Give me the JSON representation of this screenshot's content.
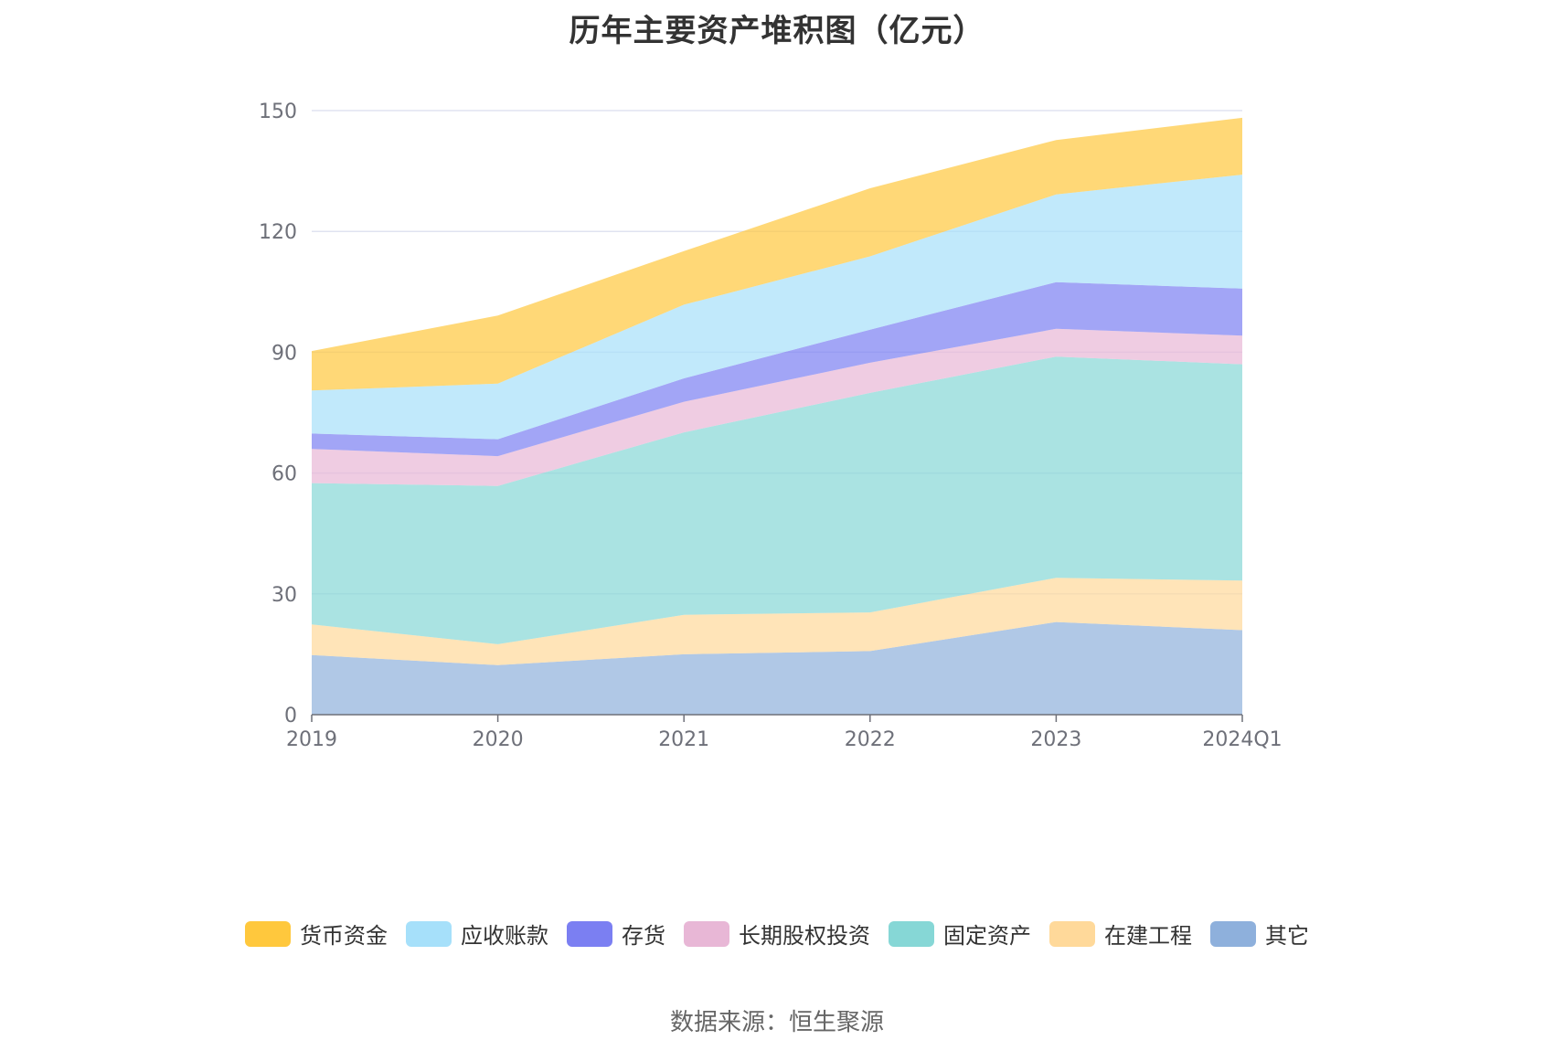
{
  "chart_data": {
    "type": "area",
    "title": "历年主要资产堆积图（亿元）",
    "stacked": true,
    "categories": [
      "2019",
      "2020",
      "2021",
      "2022",
      "2023",
      "2024Q1"
    ],
    "ylim": [
      0,
      150
    ],
    "yticks": [
      "0",
      "30",
      "60",
      "90",
      "120",
      "150"
    ],
    "grid": true,
    "legend_position": "bottom",
    "series": [
      {
        "name": "其它",
        "color": "#8eb0dc",
        "values": [
          14.8,
          12.3,
          15.0,
          15.8,
          23.0,
          21.0
        ]
      },
      {
        "name": "在建工程",
        "color": "#ffd99a",
        "values": [
          7.6,
          5.2,
          9.8,
          9.6,
          11.0,
          12.3
        ]
      },
      {
        "name": "固定资产",
        "color": "#86d7d6",
        "values": [
          35.1,
          39.3,
          45.3,
          54.5,
          54.9,
          53.7
        ]
      },
      {
        "name": "长期股权投资",
        "color": "#e8b7d6",
        "values": [
          8.5,
          7.4,
          7.6,
          7.5,
          6.9,
          7.1
        ]
      },
      {
        "name": "存货",
        "color": "#7b7ff2",
        "values": [
          3.8,
          4.2,
          5.8,
          8.2,
          11.6,
          11.7
        ]
      },
      {
        "name": "应收账款",
        "color": "#a6e0fa",
        "values": [
          10.7,
          13.8,
          18.3,
          18.2,
          21.8,
          28.3
        ]
      },
      {
        "name": "货币资金",
        "color": "#ffc83d",
        "values": [
          9.8,
          16.9,
          13.3,
          16.9,
          13.5,
          14.1
        ]
      }
    ],
    "legend_order": [
      "货币资金",
      "应收账款",
      "存货",
      "长期股权投资",
      "固定资产",
      "在建工程",
      "其它"
    ]
  },
  "source_note": "数据来源：恒生聚源"
}
